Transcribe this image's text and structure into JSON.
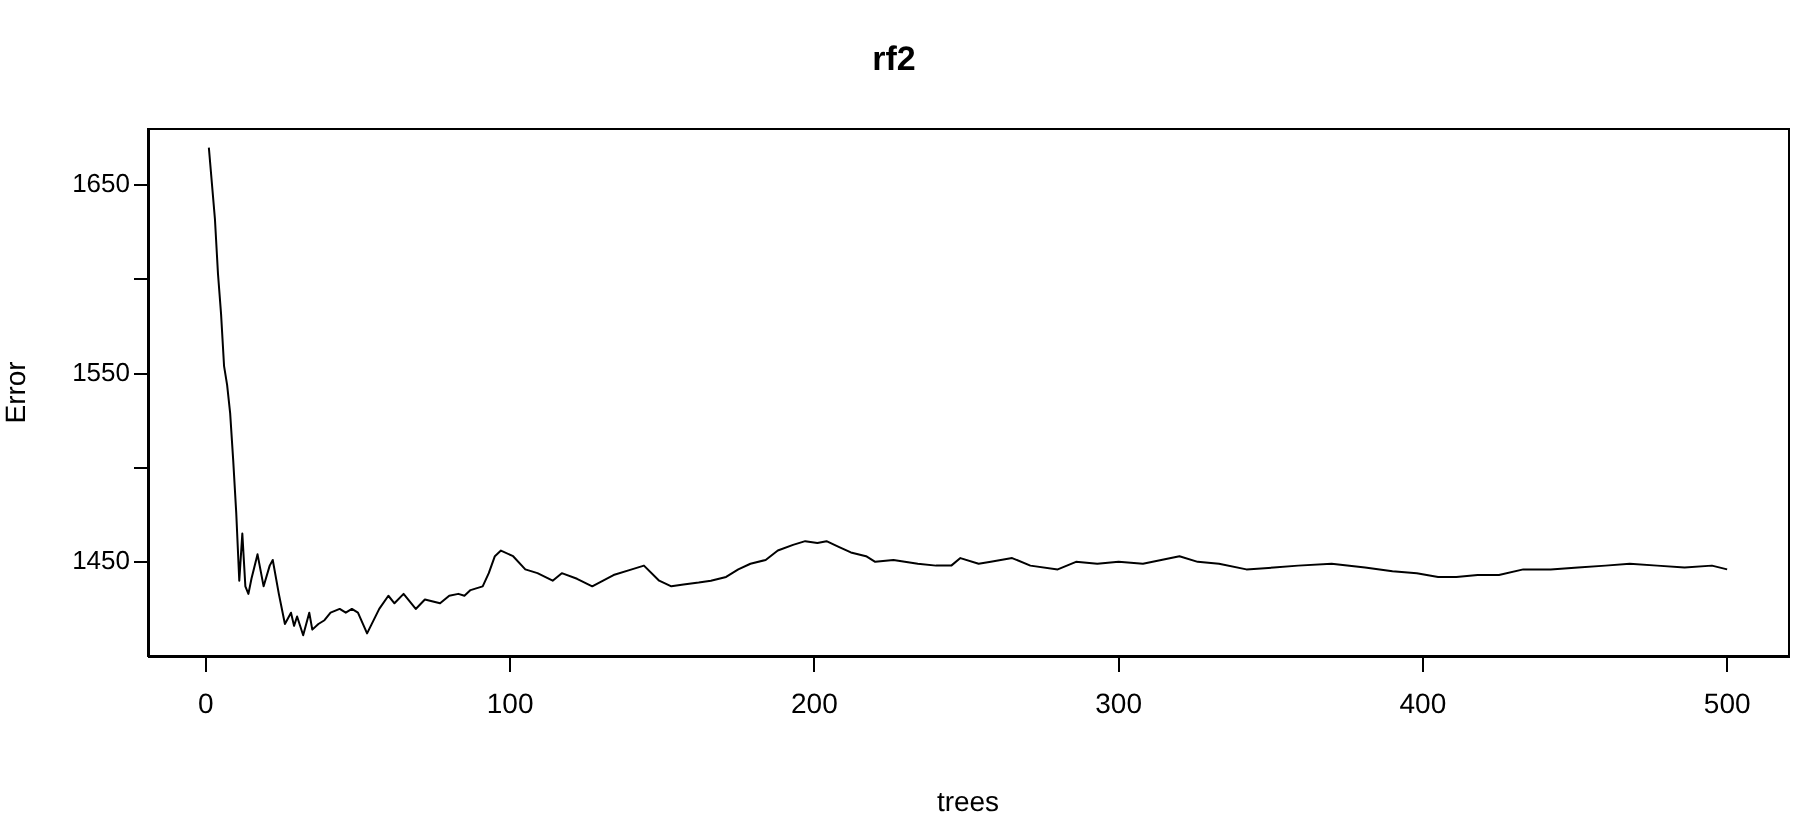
{
  "chart_data": {
    "type": "line",
    "title": "rf2",
    "xlabel": "trees",
    "ylabel": "Error",
    "xlim": [
      -19,
      520
    ],
    "xticks": [
      0,
      100,
      200,
      300,
      400,
      500
    ],
    "ylim": [
      1400,
      1680
    ],
    "yticks": [
      1450,
      {
        "value": 1500,
        "label": null
      },
      1550,
      {
        "value": 1600,
        "label": null
      },
      1650
    ],
    "grid": false,
    "legend": false,
    "marker": "none",
    "line_style": "solid",
    "series": [
      {
        "color": "#000000",
        "x": [
          1,
          3,
          4,
          5,
          6,
          7,
          8,
          9,
          10,
          11,
          12,
          13,
          14,
          15,
          17,
          19,
          21,
          22,
          24,
          26,
          28,
          29,
          30,
          32,
          34,
          35,
          37,
          39,
          41,
          44,
          46,
          48,
          50,
          53,
          57,
          60,
          62,
          65,
          69,
          72,
          77,
          80,
          83,
          85,
          87,
          91,
          93,
          95,
          97,
          101,
          105,
          109,
          114,
          117,
          122,
          127,
          134,
          140,
          144,
          149,
          153,
          157,
          162,
          166,
          171,
          175,
          179,
          184,
          188,
          193,
          197,
          201,
          204,
          208,
          212,
          217,
          220,
          226,
          234,
          240,
          245,
          248,
          254,
          258,
          265,
          271,
          280,
          286,
          293,
          300,
          308,
          314,
          320,
          326,
          333,
          342,
          351,
          359,
          370,
          381,
          390,
          398,
          405,
          411,
          418,
          425,
          433,
          442,
          451,
          460,
          468,
          477,
          486,
          495,
          500
        ],
        "values": [
          1670,
          1632,
          1603,
          1582,
          1554,
          1544,
          1529,
          1504,
          1476,
          1440,
          1465,
          1437,
          1433,
          1441,
          1454,
          1437,
          1448,
          1451,
          1433,
          1417,
          1423,
          1416,
          1421,
          1411,
          1423,
          1414,
          1417,
          1419,
          1423,
          1425,
          1423,
          1425,
          1423,
          1412,
          1425,
          1432,
          1428,
          1433,
          1425,
          1430,
          1428,
          1432,
          1433,
          1432,
          1435,
          1437,
          1444,
          1453,
          1456,
          1453,
          1446,
          1444,
          1440,
          1444,
          1441,
          1437,
          1443,
          1446,
          1448,
          1440,
          1437,
          1438,
          1439,
          1440,
          1442,
          1446,
          1449,
          1451,
          1456,
          1459,
          1461,
          1460,
          1461,
          1458,
          1455,
          1453,
          1450,
          1451,
          1449,
          1448,
          1448,
          1452,
          1449,
          1450,
          1452,
          1448,
          1446,
          1450,
          1449,
          1450,
          1449,
          1451,
          1453,
          1450,
          1449,
          1446,
          1447,
          1448,
          1449,
          1447,
          1445,
          1444,
          1442,
          1442,
          1443,
          1443,
          1446,
          1446,
          1447,
          1448,
          1449,
          1448,
          1447,
          1448,
          1446
        ]
      }
    ]
  }
}
